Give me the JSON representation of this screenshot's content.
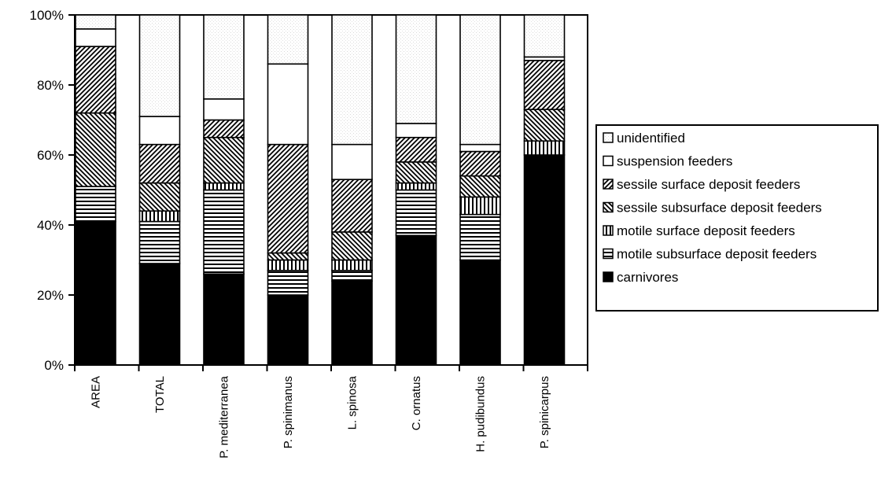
{
  "chart_data": {
    "type": "bar",
    "stacked": true,
    "percent_axis": true,
    "categories": [
      "AREA",
      "TOTAL",
      "P. mediterranea",
      "P. spinimanus",
      "L. spinosa",
      "C. ornatus",
      "H. pudibundus",
      "P. spinicarpus"
    ],
    "series": [
      {
        "name": "carnivores",
        "values": [
          41,
          29,
          26,
          20,
          24,
          37,
          30,
          60
        ],
        "pattern": "solid"
      },
      {
        "name": "motile subsurface deposit feeders",
        "values": [
          10,
          12,
          24,
          7,
          3,
          13,
          13,
          0
        ],
        "pattern": "hstripes"
      },
      {
        "name": "motile surface deposit feeders",
        "values": [
          0,
          3,
          2,
          3,
          3,
          2,
          5,
          4
        ],
        "pattern": "vstripes"
      },
      {
        "name": "sessile subsurface deposit feeders",
        "values": [
          21,
          8,
          13,
          2,
          8,
          6,
          6,
          9
        ],
        "pattern": "backdiag"
      },
      {
        "name": "sessile surface deposit feeders",
        "values": [
          19,
          11,
          5,
          31,
          15,
          7,
          7,
          14
        ],
        "pattern": "forwarddiag"
      },
      {
        "name": "suspension feeders",
        "values": [
          5,
          8,
          6,
          23,
          10,
          4,
          2,
          1
        ],
        "pattern": "white"
      },
      {
        "name": "unidentified",
        "values": [
          4,
          29,
          24,
          14,
          37,
          31,
          37,
          12
        ],
        "pattern": "dots"
      }
    ],
    "legend_order": [
      "unidentified",
      "suspension feeders",
      "sessile surface deposit feeders",
      "sessile subsurface deposit feeders",
      "motile surface deposit feeders",
      "motile subsurface deposit feeders",
      "carnivores"
    ],
    "y_ticks": [
      "0%",
      "20%",
      "40%",
      "60%",
      "80%",
      "100%"
    ],
    "ylim": [
      0,
      100
    ],
    "legend_position": "right",
    "grid": false
  }
}
